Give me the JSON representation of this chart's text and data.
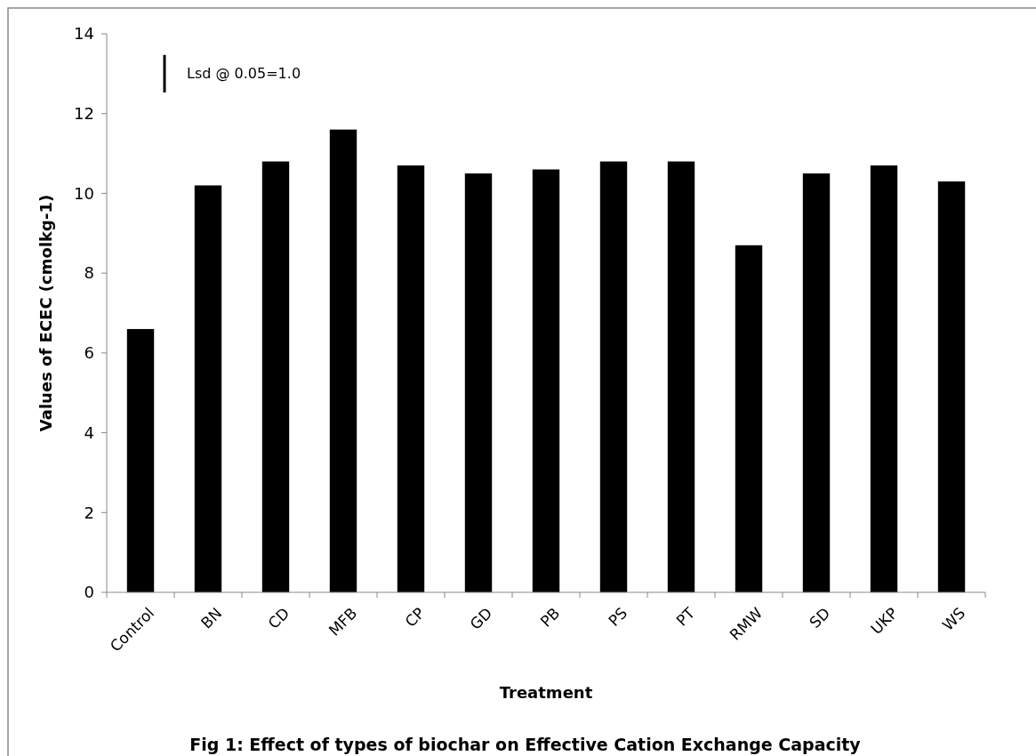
{
  "chart_data": {
    "type": "bar",
    "title": "Fig 1: Effect of types of biochar on Effective Cation Exchange Capacity",
    "xlabel": "Treatment",
    "ylabel": "Values of ECEC (cmolkg-1)",
    "categories": [
      "Control",
      "BN",
      "CD",
      "MFB",
      "CP",
      "GD",
      "PB",
      "PS",
      "PT",
      "RMW",
      "SD",
      "UKP",
      "WS"
    ],
    "values": [
      6.6,
      10.2,
      10.8,
      11.6,
      10.7,
      10.5,
      10.6,
      10.8,
      10.8,
      8.7,
      10.5,
      10.7,
      10.3
    ],
    "color": "#000000",
    "ylim": [
      0,
      14
    ],
    "yticks": [
      0,
      2,
      4,
      6,
      8,
      10,
      12,
      14
    ],
    "grid": false,
    "annotations": [
      "Lsd @ 0.05=1.0"
    ]
  }
}
